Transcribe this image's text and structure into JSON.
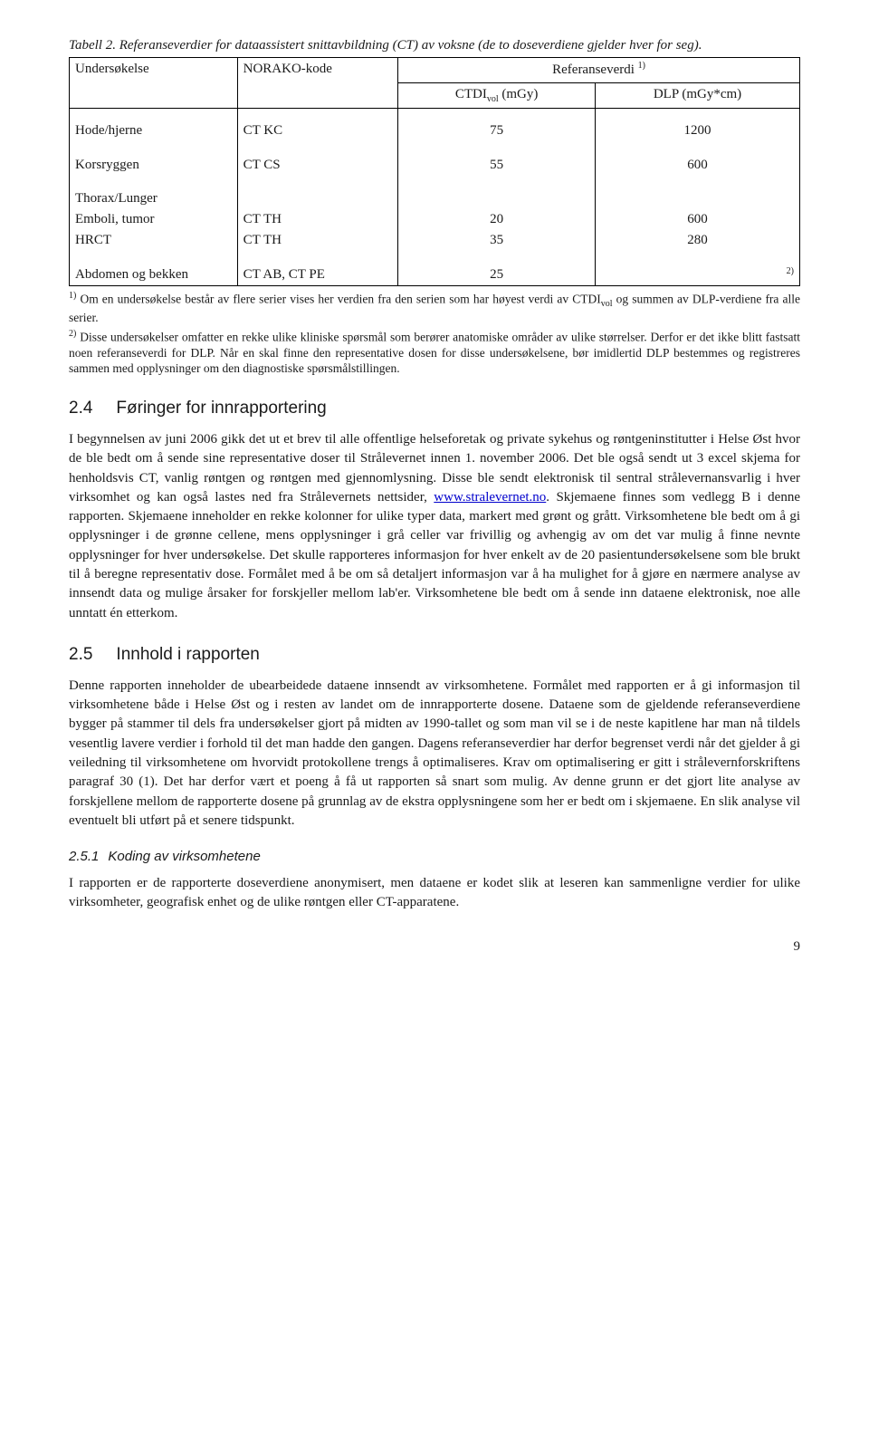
{
  "table": {
    "caption": "Tabell 2. Referanseverdier for dataassistert snittavbildning (CT) av voksne (de to doseverdiene gjelder hver for seg).",
    "headers": {
      "exam": "Undersøkelse",
      "code": "NORAKO-kode",
      "ref": "Referanseverdi ",
      "ref_sup": "1)",
      "ctdi_base": "CTDI",
      "ctdi_sub": "vol",
      "ctdi_unit": " (mGy)",
      "dlp": "DLP (mGy*cm)"
    },
    "rows": [
      {
        "exam": "Hode/hjerne",
        "code": "CT KC",
        "ctdi": "75",
        "dlp": "1200"
      },
      {
        "exam": "Korsryggen",
        "code": "CT CS",
        "ctdi": "55",
        "dlp": "600"
      },
      {
        "exam": "Thorax/Lunger",
        "code": "",
        "ctdi": "",
        "dlp": ""
      },
      {
        "exam": "Emboli, tumor",
        "code": "CT TH",
        "ctdi": "20",
        "dlp": "600"
      },
      {
        "exam": "HRCT",
        "code": "CT TH",
        "ctdi": "35",
        "dlp": "280"
      },
      {
        "exam": "Abdomen og bekken",
        "code": "CT AB, CT PE",
        "ctdi": "25",
        "dlp_sup": "2)"
      }
    ],
    "footnote1_sup": "1)",
    "footnote1": " Om en undersøkelse består av flere serier vises her verdien fra den serien som har høyest verdi av CTDI",
    "footnote1_sub": "vol",
    "footnote1b": " og summen av DLP-verdiene fra alle serier.",
    "footnote2_sup": "2)",
    "footnote2": " Disse undersøkelser omfatter en rekke ulike kliniske spørsmål som berører anatomiske områder av ulike størrelser. Derfor er det ikke blitt fastsatt noen referanseverdi for DLP. Når en skal finne den representative dosen for disse undersøkelsene, bør imidlertid DLP bestemmes og registreres sammen med opplysninger om den diagnostiske spørsmålstillingen."
  },
  "section24": {
    "num": "2.4",
    "title": "Føringer for innrapportering",
    "text_a": "I begynnelsen av juni 2006 gikk det ut et brev til alle offentlige helseforetak og private sykehus og røntgeninstitutter i Helse Øst hvor de ble bedt om å sende sine representative doser til Strålevernet innen 1. november 2006. Det ble også sendt ut 3 excel skjema for henholdsvis CT, vanlig røntgen og røntgen med gjennomlysning. Disse ble sendt elektronisk til sentral strålevernansvarlig i hver virksomhet og kan også lastes ned fra Strålevernets nettsider, ",
    "link_text": "www.stralevernet.no",
    "text_b": ". Skjemaene finnes som vedlegg B i denne rapporten. Skjemaene inneholder en rekke kolonner for ulike typer data, markert med grønt og grått. Virksomhetene ble bedt om å gi opplysninger i de grønne cellene, mens opplysninger i grå celler var frivillig og avhengig av om det var mulig å finne nevnte opplysninger for hver undersøkelse. Det skulle rapporteres informasjon for hver enkelt av de 20 pasientundersøkelsene som ble brukt til å beregne representativ dose. Formålet med å be om så detaljert informasjon var å ha mulighet for å gjøre en nærmere analyse av innsendt data og mulige årsaker for forskjeller mellom lab'er. Virksomhetene ble bedt om å sende inn dataene elektronisk, noe alle unntatt én etterkom."
  },
  "section25": {
    "num": "2.5",
    "title": "Innhold i rapporten",
    "text": "Denne rapporten inneholder de ubearbeidede dataene innsendt av virksomhetene. Formålet med rapporten er å gi informasjon til virksomhetene både i Helse Øst og i resten av landet om de innrapporterte dosene. Dataene som de gjeldende referanseverdiene bygger på stammer til dels fra undersøkelser gjort på midten av 1990-tallet og som man vil se i de neste kapitlene har man nå tildels vesentlig lavere verdier i forhold til det man hadde den gangen. Dagens referanseverdier har derfor begrenset verdi når det gjelder å gi veiledning til virksomhetene om hvorvidt protokollene trengs å optimaliseres. Krav om optimalisering er gitt i strålevernforskriftens paragraf 30 (1). Det har derfor vært et poeng å få ut rapporten så snart som mulig. Av denne grunn er det gjort lite analyse av forskjellene mellom de rapporterte dosene på grunnlag av de ekstra opplysningene som her er bedt om i skjemaene. En slik analyse vil eventuelt bli utført på et senere tidspunkt."
  },
  "section251": {
    "num": "2.5.1",
    "title": "Koding av virksomhetene",
    "text": "I rapporten er de rapporterte doseverdiene anonymisert, men dataene er kodet slik at leseren kan sammenligne verdier for ulike virksomheter, geografisk enhet og de ulike røntgen eller CT-apparatene."
  },
  "page_number": "9"
}
